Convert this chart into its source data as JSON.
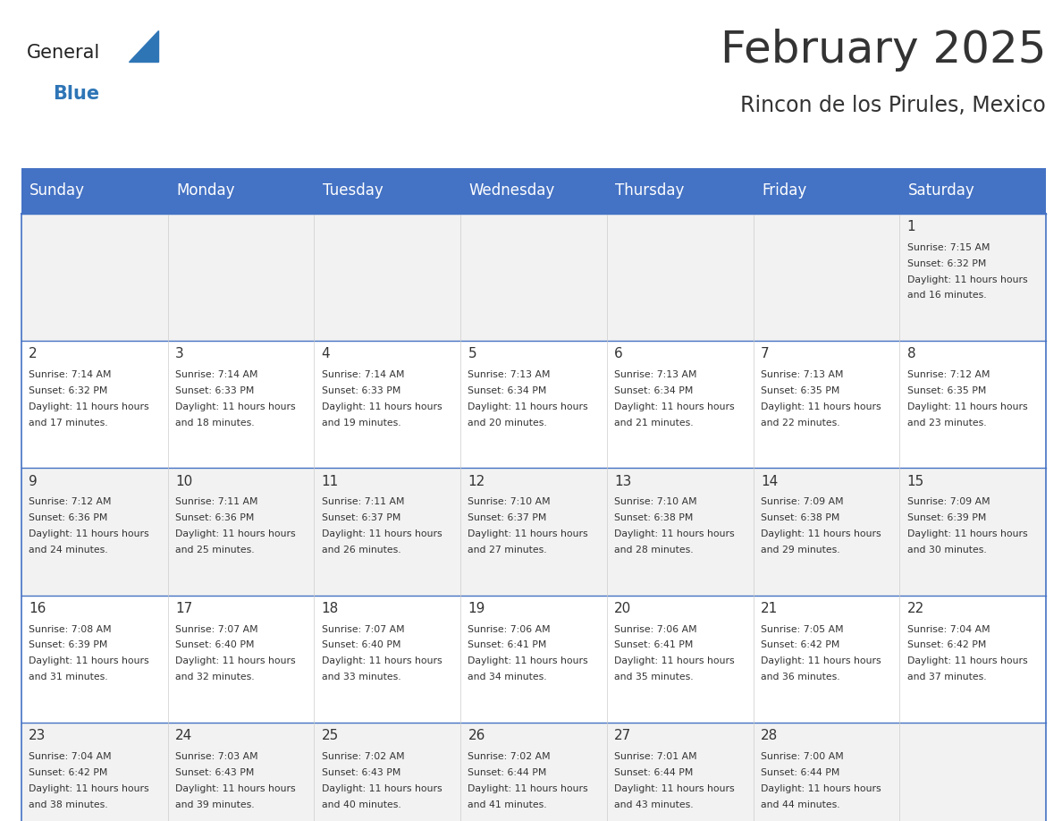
{
  "title": "February 2025",
  "subtitle": "Rincon de los Pirules, Mexico",
  "header_color": "#4472C4",
  "header_text_color": "#FFFFFF",
  "day_names": [
    "Sunday",
    "Monday",
    "Tuesday",
    "Wednesday",
    "Thursday",
    "Friday",
    "Saturday"
  ],
  "background_color": "#FFFFFF",
  "cell_bg_even": "#F2F2F2",
  "cell_bg_odd": "#FFFFFF",
  "border_color": "#4472C4",
  "text_color": "#333333",
  "logo_general_color": "#222222",
  "logo_blue_color": "#2E75B6",
  "days": [
    {
      "day": 1,
      "col": 6,
      "row": 0,
      "sunrise": "7:15 AM",
      "sunset": "6:32 PM",
      "daylight": "11 hours and 16 minutes."
    },
    {
      "day": 2,
      "col": 0,
      "row": 1,
      "sunrise": "7:14 AM",
      "sunset": "6:32 PM",
      "daylight": "11 hours and 17 minutes."
    },
    {
      "day": 3,
      "col": 1,
      "row": 1,
      "sunrise": "7:14 AM",
      "sunset": "6:33 PM",
      "daylight": "11 hours and 18 minutes."
    },
    {
      "day": 4,
      "col": 2,
      "row": 1,
      "sunrise": "7:14 AM",
      "sunset": "6:33 PM",
      "daylight": "11 hours and 19 minutes."
    },
    {
      "day": 5,
      "col": 3,
      "row": 1,
      "sunrise": "7:13 AM",
      "sunset": "6:34 PM",
      "daylight": "11 hours and 20 minutes."
    },
    {
      "day": 6,
      "col": 4,
      "row": 1,
      "sunrise": "7:13 AM",
      "sunset": "6:34 PM",
      "daylight": "11 hours and 21 minutes."
    },
    {
      "day": 7,
      "col": 5,
      "row": 1,
      "sunrise": "7:13 AM",
      "sunset": "6:35 PM",
      "daylight": "11 hours and 22 minutes."
    },
    {
      "day": 8,
      "col": 6,
      "row": 1,
      "sunrise": "7:12 AM",
      "sunset": "6:35 PM",
      "daylight": "11 hours and 23 minutes."
    },
    {
      "day": 9,
      "col": 0,
      "row": 2,
      "sunrise": "7:12 AM",
      "sunset": "6:36 PM",
      "daylight": "11 hours and 24 minutes."
    },
    {
      "day": 10,
      "col": 1,
      "row": 2,
      "sunrise": "7:11 AM",
      "sunset": "6:36 PM",
      "daylight": "11 hours and 25 minutes."
    },
    {
      "day": 11,
      "col": 2,
      "row": 2,
      "sunrise": "7:11 AM",
      "sunset": "6:37 PM",
      "daylight": "11 hours and 26 minutes."
    },
    {
      "day": 12,
      "col": 3,
      "row": 2,
      "sunrise": "7:10 AM",
      "sunset": "6:37 PM",
      "daylight": "11 hours and 27 minutes."
    },
    {
      "day": 13,
      "col": 4,
      "row": 2,
      "sunrise": "7:10 AM",
      "sunset": "6:38 PM",
      "daylight": "11 hours and 28 minutes."
    },
    {
      "day": 14,
      "col": 5,
      "row": 2,
      "sunrise": "7:09 AM",
      "sunset": "6:38 PM",
      "daylight": "11 hours and 29 minutes."
    },
    {
      "day": 15,
      "col": 6,
      "row": 2,
      "sunrise": "7:09 AM",
      "sunset": "6:39 PM",
      "daylight": "11 hours and 30 minutes."
    },
    {
      "day": 16,
      "col": 0,
      "row": 3,
      "sunrise": "7:08 AM",
      "sunset": "6:39 PM",
      "daylight": "11 hours and 31 minutes."
    },
    {
      "day": 17,
      "col": 1,
      "row": 3,
      "sunrise": "7:07 AM",
      "sunset": "6:40 PM",
      "daylight": "11 hours and 32 minutes."
    },
    {
      "day": 18,
      "col": 2,
      "row": 3,
      "sunrise": "7:07 AM",
      "sunset": "6:40 PM",
      "daylight": "11 hours and 33 minutes."
    },
    {
      "day": 19,
      "col": 3,
      "row": 3,
      "sunrise": "7:06 AM",
      "sunset": "6:41 PM",
      "daylight": "11 hours and 34 minutes."
    },
    {
      "day": 20,
      "col": 4,
      "row": 3,
      "sunrise": "7:06 AM",
      "sunset": "6:41 PM",
      "daylight": "11 hours and 35 minutes."
    },
    {
      "day": 21,
      "col": 5,
      "row": 3,
      "sunrise": "7:05 AM",
      "sunset": "6:42 PM",
      "daylight": "11 hours and 36 minutes."
    },
    {
      "day": 22,
      "col": 6,
      "row": 3,
      "sunrise": "7:04 AM",
      "sunset": "6:42 PM",
      "daylight": "11 hours and 37 minutes."
    },
    {
      "day": 23,
      "col": 0,
      "row": 4,
      "sunrise": "7:04 AM",
      "sunset": "6:42 PM",
      "daylight": "11 hours and 38 minutes."
    },
    {
      "day": 24,
      "col": 1,
      "row": 4,
      "sunrise": "7:03 AM",
      "sunset": "6:43 PM",
      "daylight": "11 hours and 39 minutes."
    },
    {
      "day": 25,
      "col": 2,
      "row": 4,
      "sunrise": "7:02 AM",
      "sunset": "6:43 PM",
      "daylight": "11 hours and 40 minutes."
    },
    {
      "day": 26,
      "col": 3,
      "row": 4,
      "sunrise": "7:02 AM",
      "sunset": "6:44 PM",
      "daylight": "11 hours and 41 minutes."
    },
    {
      "day": 27,
      "col": 4,
      "row": 4,
      "sunrise": "7:01 AM",
      "sunset": "6:44 PM",
      "daylight": "11 hours and 43 minutes."
    },
    {
      "day": 28,
      "col": 5,
      "row": 4,
      "sunrise": "7:00 AM",
      "sunset": "6:44 PM",
      "daylight": "11 hours and 44 minutes."
    }
  ],
  "num_rows": 5,
  "num_cols": 7,
  "figsize": [
    11.88,
    9.18
  ]
}
